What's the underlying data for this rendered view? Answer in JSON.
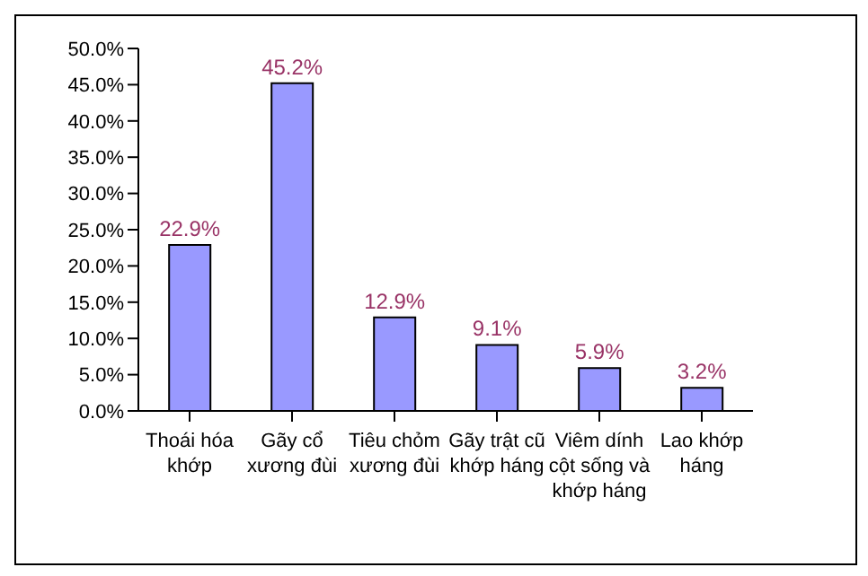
{
  "chart_data": {
    "type": "bar",
    "categories": [
      "Thoái hóa khớp",
      "Gãy cổ xương đùi",
      "Tiêu chỏm xương đùi",
      "Gãy trật cũ khớp háng",
      "Viêm dính cột sống và khớp háng",
      "Lao khớp háng"
    ],
    "values": [
      22.9,
      45.2,
      12.9,
      9.1,
      5.9,
      3.2
    ],
    "value_labels": [
      "22.9%",
      "45.2%",
      "12.9%",
      "9.1%",
      "5.9%",
      "3.2%"
    ],
    "color": "#9999ff",
    "ylim": [
      0,
      50
    ],
    "yticks": [
      {
        "value": 0,
        "label": "0.0%"
      },
      {
        "value": 5,
        "label": "5.0%"
      },
      {
        "value": 10,
        "label": "10.0%"
      },
      {
        "value": 15,
        "label": "15.0%"
      },
      {
        "value": 20,
        "label": "20.0%"
      },
      {
        "value": 25,
        "label": "25.0%"
      },
      {
        "value": 30,
        "label": "30.0%"
      },
      {
        "value": 35,
        "label": "35.0%"
      },
      {
        "value": 40,
        "label": "40.0%"
      },
      {
        "value": 45,
        "label": "45.0%"
      },
      {
        "value": 50,
        "label": "50.0%"
      }
    ],
    "grid": false,
    "legend": false
  }
}
